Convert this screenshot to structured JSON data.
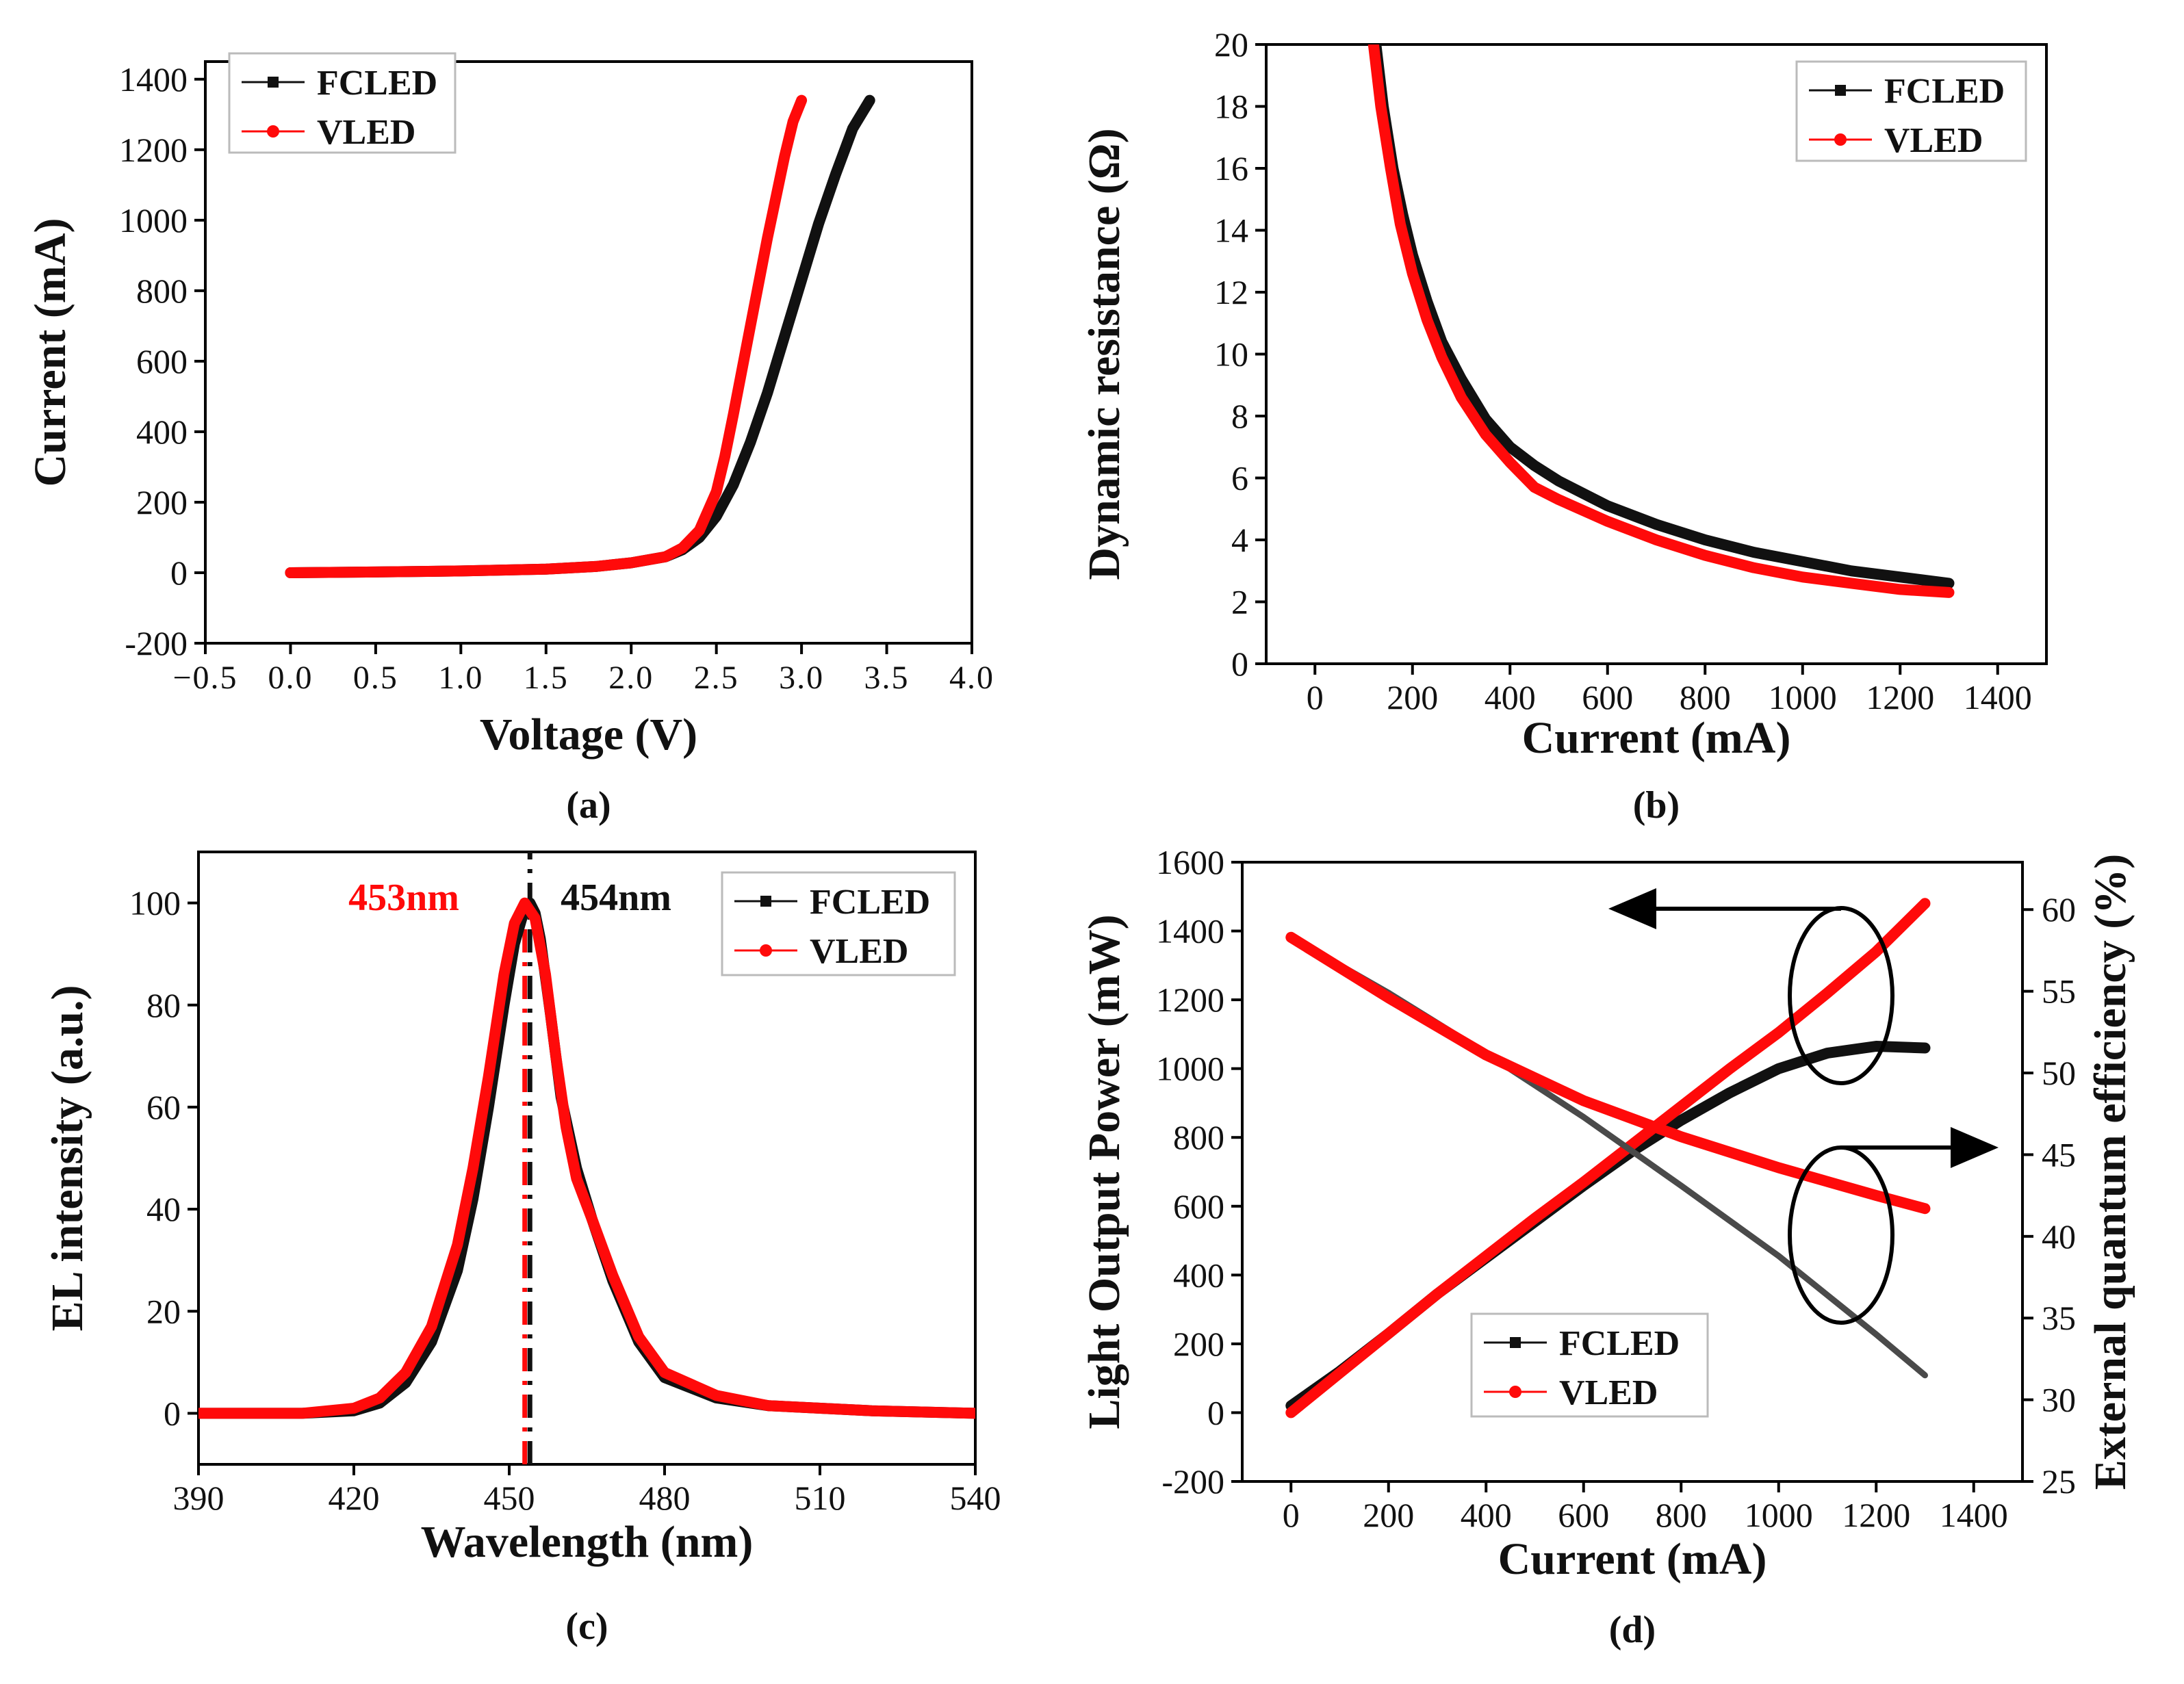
{
  "colors": {
    "fcled": "#111111",
    "vled": "#ff0a0a",
    "eqe_fcled": "#4a4a4a",
    "axis": "#000000"
  },
  "chart_data": [
    {
      "panel": "(a)",
      "type": "line",
      "xlabel": "Voltage  (V)",
      "ylabel": "Current  (mA)",
      "xlim": [
        -0.5,
        4.0
      ],
      "ylim": [
        -200,
        1450
      ],
      "xticks": [
        -0.5,
        0.0,
        0.5,
        1.0,
        1.5,
        2.0,
        2.5,
        3.0,
        3.5,
        4.0
      ],
      "xtick_labels": [
        "−0.5",
        "0.0",
        "0.5",
        "1.0",
        "1.5",
        "2.0",
        "2.5",
        "3.0",
        "3.5",
        "4.0"
      ],
      "yticks": [
        -200,
        0,
        200,
        400,
        600,
        800,
        1000,
        1200,
        1400
      ],
      "ytick_labels": [
        "-200",
        "0",
        "200",
        "400",
        "600",
        "800",
        "1000",
        "1200",
        "1400"
      ],
      "legend": [
        "FCLED",
        "VLED"
      ],
      "series": [
        {
          "name": "FCLED",
          "x": [
            0.0,
            0.5,
            1.0,
            1.5,
            1.8,
            2.0,
            2.2,
            2.3,
            2.4,
            2.5,
            2.6,
            2.7,
            2.8,
            2.9,
            3.0,
            3.1,
            3.2,
            3.3,
            3.4
          ],
          "y": [
            0,
            2,
            5,
            10,
            18,
            28,
            45,
            65,
            100,
            160,
            250,
            370,
            510,
            670,
            830,
            990,
            1130,
            1260,
            1340
          ]
        },
        {
          "name": "VLED",
          "x": [
            0.0,
            0.5,
            1.0,
            1.5,
            1.8,
            2.0,
            2.2,
            2.3,
            2.4,
            2.5,
            2.55,
            2.6,
            2.7,
            2.8,
            2.9,
            2.95,
            3.0
          ],
          "y": [
            0,
            2,
            5,
            10,
            18,
            28,
            45,
            70,
            120,
            230,
            330,
            450,
            700,
            950,
            1180,
            1280,
            1340
          ]
        }
      ],
      "panel_label": "(a)"
    },
    {
      "panel": "(b)",
      "type": "line",
      "xlabel": "Current (mA)",
      "ylabel": "Dynamic resistance (Ω)",
      "xlim": [
        -100,
        1500
      ],
      "ylim": [
        0,
        20
      ],
      "xticks": [
        0,
        200,
        400,
        600,
        800,
        1000,
        1200,
        1400
      ],
      "xtick_labels": [
        "0",
        "200",
        "400",
        "600",
        "800",
        "1000",
        "1200",
        "1400"
      ],
      "yticks": [
        0,
        2,
        4,
        6,
        8,
        10,
        12,
        14,
        16,
        18,
        20
      ],
      "ytick_labels": [
        "0",
        "2",
        "4",
        "6",
        "8",
        "10",
        "12",
        "14",
        "16",
        "18",
        "20"
      ],
      "legend": [
        "FCLED",
        "VLED"
      ],
      "series": [
        {
          "name": "FCLED",
          "x": [
            125,
            140,
            160,
            180,
            200,
            230,
            260,
            300,
            350,
            400,
            450,
            500,
            600,
            700,
            800,
            900,
            1000,
            1100,
            1200,
            1300
          ],
          "y": [
            20,
            18,
            16,
            14.5,
            13.2,
            11.7,
            10.4,
            9.2,
            7.9,
            7.0,
            6.4,
            5.9,
            5.1,
            4.5,
            4.0,
            3.6,
            3.3,
            3.0,
            2.8,
            2.6
          ]
        },
        {
          "name": "VLED",
          "x": [
            120,
            135,
            155,
            175,
            200,
            230,
            260,
            300,
            350,
            400,
            450,
            500,
            600,
            700,
            800,
            900,
            1000,
            1100,
            1200,
            1300
          ],
          "y": [
            20,
            18,
            16,
            14.2,
            12.6,
            11.1,
            9.9,
            8.6,
            7.4,
            6.5,
            5.7,
            5.3,
            4.6,
            4.0,
            3.5,
            3.1,
            2.8,
            2.6,
            2.4,
            2.3
          ]
        }
      ],
      "panel_label": "(b)"
    },
    {
      "panel": "(c)",
      "type": "line",
      "xlabel": "Wavelength (nm)",
      "ylabel": "EL intensity (a.u.)",
      "xlim": [
        390,
        540
      ],
      "ylim": [
        -10,
        110
      ],
      "xticks": [
        390,
        420,
        450,
        480,
        510,
        540
      ],
      "xtick_labels": [
        "390",
        "420",
        "450",
        "480",
        "510",
        "540"
      ],
      "yticks": [
        0,
        20,
        40,
        60,
        80,
        100
      ],
      "ytick_labels": [
        "0",
        "20",
        "40",
        "60",
        "80",
        "100"
      ],
      "legend": [
        "FCLED",
        "VLED"
      ],
      "annotations": [
        {
          "text": "453nm",
          "series": "VLED",
          "x": 453
        },
        {
          "text": "454nm",
          "series": "FCLED",
          "x": 454
        }
      ],
      "series": [
        {
          "name": "FCLED",
          "x": [
            390,
            410,
            420,
            425,
            430,
            435,
            440,
            443,
            446,
            449,
            451,
            453,
            454,
            455,
            456,
            458,
            460,
            463,
            466,
            470,
            475,
            480,
            490,
            500,
            520,
            540
          ],
          "y": [
            0,
            0,
            0.5,
            2,
            6,
            14,
            28,
            42,
            60,
            80,
            92,
            99,
            100,
            98,
            93,
            78,
            62,
            48,
            38,
            26,
            14,
            7,
            3,
            1.5,
            0.5,
            0
          ]
        },
        {
          "name": "VLED",
          "x": [
            390,
            410,
            420,
            425,
            430,
            435,
            440,
            443,
            446,
            449,
            451,
            453,
            455,
            457,
            459,
            461,
            463,
            466,
            470,
            475,
            480,
            490,
            500,
            520,
            540
          ],
          "y": [
            0,
            0,
            1,
            3,
            8,
            17,
            33,
            48,
            66,
            86,
            96,
            100,
            97,
            86,
            70,
            56,
            46,
            38,
            27,
            15,
            8,
            3.5,
            1.5,
            0.5,
            0
          ]
        }
      ],
      "panel_label": "(c)"
    },
    {
      "panel": "(d)",
      "type": "line",
      "xlabel": "Current (mA)",
      "ylabel": "Light Output Power (mW)",
      "ylabel_right": "External quantum efficiency (%)",
      "xlim": [
        -100,
        1500
      ],
      "ylim": [
        -200,
        1600
      ],
      "ylim_right": [
        25,
        62.9
      ],
      "xticks": [
        0,
        200,
        400,
        600,
        800,
        1000,
        1200,
        1400
      ],
      "xtick_labels": [
        "0",
        "200",
        "400",
        "600",
        "800",
        "1000",
        "1200",
        "1400"
      ],
      "yticks": [
        -200,
        0,
        200,
        400,
        600,
        800,
        1000,
        1200,
        1400,
        1600
      ],
      "ytick_labels": [
        "-200",
        "0",
        "200",
        "400",
        "600",
        "800",
        "1000",
        "1200",
        "1400",
        "1600"
      ],
      "yticks_right": [
        25,
        30,
        35,
        40,
        45,
        50,
        55,
        60
      ],
      "ytick_labels_right": [
        "25",
        "30",
        "35",
        "40",
        "45",
        "50",
        "55",
        "60"
      ],
      "legend": [
        "FCLED",
        "VLED"
      ],
      "series": [
        {
          "name": "FCLED",
          "axis": "left",
          "x": [
            0,
            100,
            200,
            300,
            400,
            500,
            600,
            700,
            800,
            900,
            1000,
            1100,
            1200,
            1300
          ],
          "y": [
            20,
            120,
            230,
            345,
            450,
            555,
            660,
            760,
            850,
            930,
            1000,
            1045,
            1065,
            1060
          ]
        },
        {
          "name": "VLED",
          "axis": "left",
          "x": [
            0,
            100,
            200,
            300,
            400,
            500,
            600,
            700,
            800,
            900,
            1000,
            1100,
            1200,
            1300
          ],
          "y": [
            0,
            115,
            230,
            345,
            455,
            565,
            670,
            780,
            890,
            1000,
            1105,
            1220,
            1340,
            1480
          ]
        },
        {
          "name": "FCLED",
          "axis": "right",
          "x": [
            0,
            200,
            400,
            600,
            800,
            1000,
            1200,
            1300
          ],
          "y": [
            58.3,
            54.9,
            51.2,
            47.3,
            43.1,
            38.8,
            34.0,
            31.5
          ]
        },
        {
          "name": "VLED",
          "axis": "right",
          "x": [
            0,
            200,
            400,
            600,
            800,
            1000,
            1200,
            1300
          ],
          "y": [
            58.3,
            54.6,
            51.1,
            48.3,
            46.1,
            44.2,
            42.5,
            41.7
          ]
        }
      ],
      "panel_label": "(d)"
    }
  ]
}
